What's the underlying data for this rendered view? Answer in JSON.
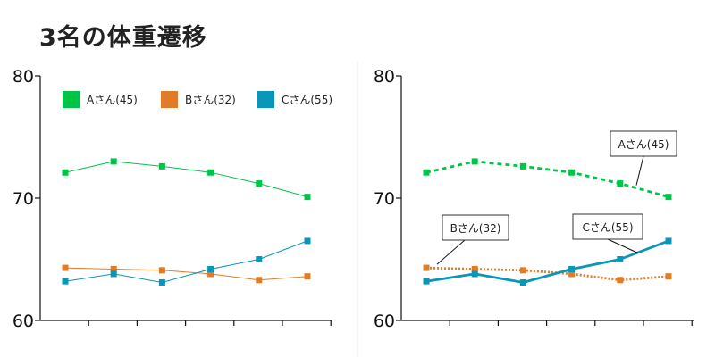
{
  "title": "3名の体重遷移",
  "colors": {
    "A": "#00c448",
    "B": "#e07b28",
    "C": "#0a96b8"
  },
  "chart_data": [
    {
      "type": "line",
      "x": [
        1,
        2,
        3,
        4,
        5,
        6
      ],
      "ylim": [
        60,
        80
      ],
      "yticks": [
        "60",
        "70",
        "80"
      ],
      "legend_position": "top",
      "grid": false,
      "series": [
        {
          "key": "A",
          "name": "Aさん(45)",
          "values": [
            72.1,
            73.0,
            72.6,
            72.1,
            71.2,
            70.1
          ]
        },
        {
          "key": "B",
          "name": "Bさん(32)",
          "values": [
            64.3,
            64.2,
            64.1,
            63.8,
            63.3,
            63.6
          ]
        },
        {
          "key": "C",
          "name": "Cさん(55)",
          "values": [
            63.2,
            63.8,
            63.1,
            64.2,
            65.0,
            66.5
          ]
        }
      ]
    },
    {
      "type": "line",
      "x": [
        1,
        2,
        3,
        4,
        5,
        6
      ],
      "ylim": [
        60,
        80
      ],
      "yticks": [
        "60",
        "70",
        "80"
      ],
      "legend_position": "none",
      "grid": false,
      "series": [
        {
          "key": "A",
          "name": "Aさん(45)",
          "values": [
            72.1,
            73.0,
            72.6,
            72.1,
            71.2,
            70.1
          ]
        },
        {
          "key": "B",
          "name": "Bさん(32)",
          "values": [
            64.3,
            64.2,
            64.1,
            63.8,
            63.3,
            63.6
          ]
        },
        {
          "key": "C",
          "name": "Cさん(55)",
          "values": [
            63.2,
            63.8,
            63.1,
            64.2,
            65.0,
            66.5
          ]
        }
      ],
      "annotations": [
        "Aさん(45)",
        "Bさん(32)",
        "Cさん(55)"
      ]
    }
  ]
}
